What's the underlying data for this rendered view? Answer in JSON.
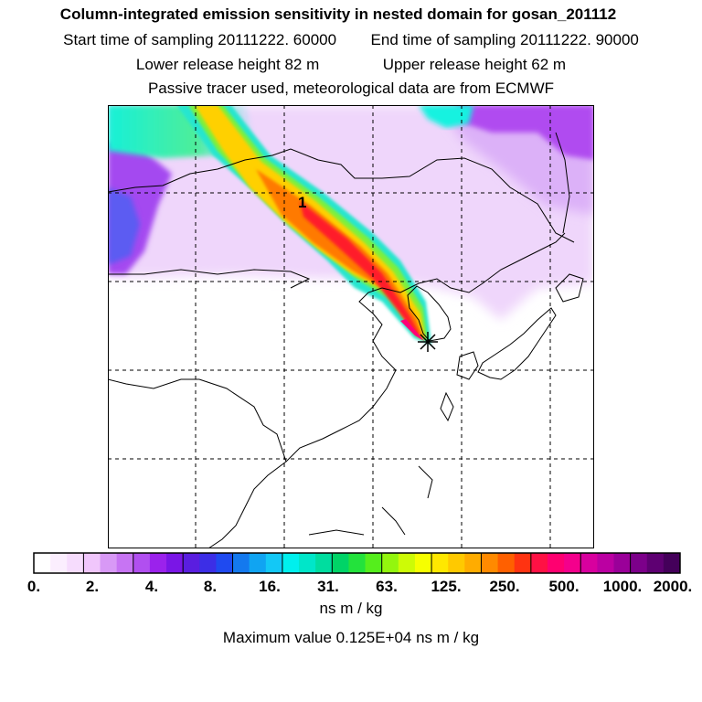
{
  "header": {
    "title": "Column-integrated emission sensitivity in nested domain for gosan_201112",
    "start_label": "Start time of sampling 20111222. 60000",
    "end_label": "End time of sampling 20111222. 90000",
    "lower_label": "Lower release height   82 m",
    "upper_label": "Upper release height   62 m",
    "tracer_label": "Passive tracer used, meteorological data are from ECMWF"
  },
  "map": {
    "marker_label": "1",
    "colors": {
      "land_line": "#000000",
      "grid_line": "#000000",
      "plume_core": "#ff1a1a",
      "plume_mid": "#ffd400",
      "plume_outer": "#22e4d8",
      "background_haze": "#e3b3f7",
      "haze_deep": "#a020f0"
    }
  },
  "colorbar": {
    "colors": [
      "#ffffff",
      "#fbeefe",
      "#f6dcfd",
      "#f0c6fc",
      "#d899f6",
      "#c774f3",
      "#b14ff0",
      "#9b22ec",
      "#7a16e6",
      "#5a1ee0",
      "#3c2ee6",
      "#1f4af0",
      "#1479ee",
      "#10a4f2",
      "#13c8f6",
      "#00f0ee",
      "#00e6c9",
      "#00dd9f",
      "#00d467",
      "#23e23c",
      "#55ee1c",
      "#93f60e",
      "#cdfb06",
      "#f6ff00",
      "#ffe800",
      "#ffc900",
      "#ffac00",
      "#ff8a00",
      "#ff6000",
      "#ff3311",
      "#ff1144",
      "#ff0070",
      "#f4008c",
      "#d8009e",
      "#bb00a2",
      "#9a0099",
      "#7c008a",
      "#5e0072",
      "#44005a"
    ],
    "ticks": [
      "0.",
      "2.",
      "4.",
      "8.",
      "16.",
      "31.",
      "63.",
      "125.",
      "250.",
      "500.",
      "1000.",
      "2000."
    ],
    "units": "ns m / kg",
    "max_value_label": "Maximum value  0.125E+04 ns m / kg"
  }
}
